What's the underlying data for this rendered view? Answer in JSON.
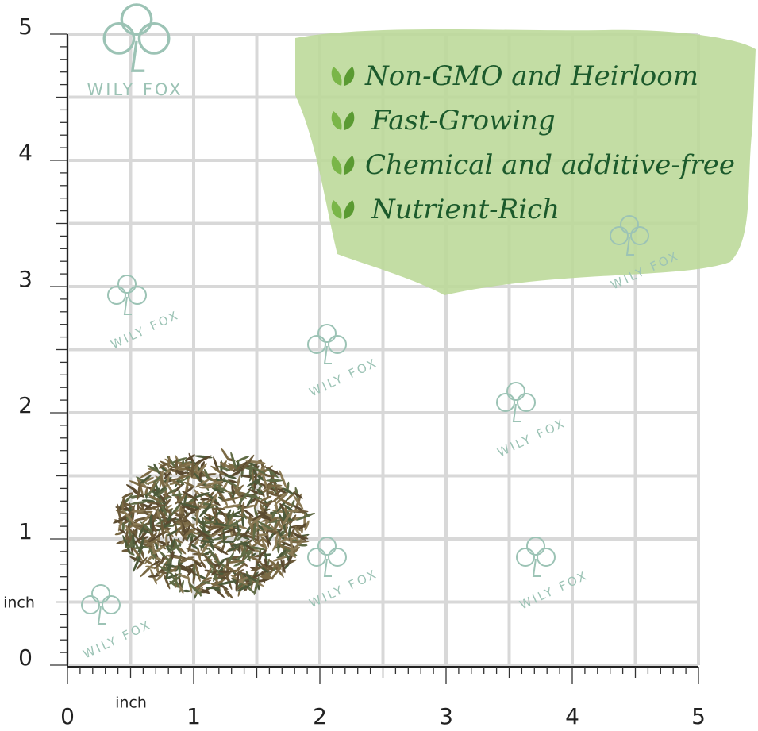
{
  "watermark": "WILY FOX",
  "features": [
    "Non-GMO and Heirloom",
    "Fast-Growing",
    "Chemical and additive-free",
    "Nutrient-Rich"
  ],
  "ruler": {
    "unit": "inch",
    "marks": [
      0,
      1,
      2,
      3,
      4,
      5
    ]
  }
}
